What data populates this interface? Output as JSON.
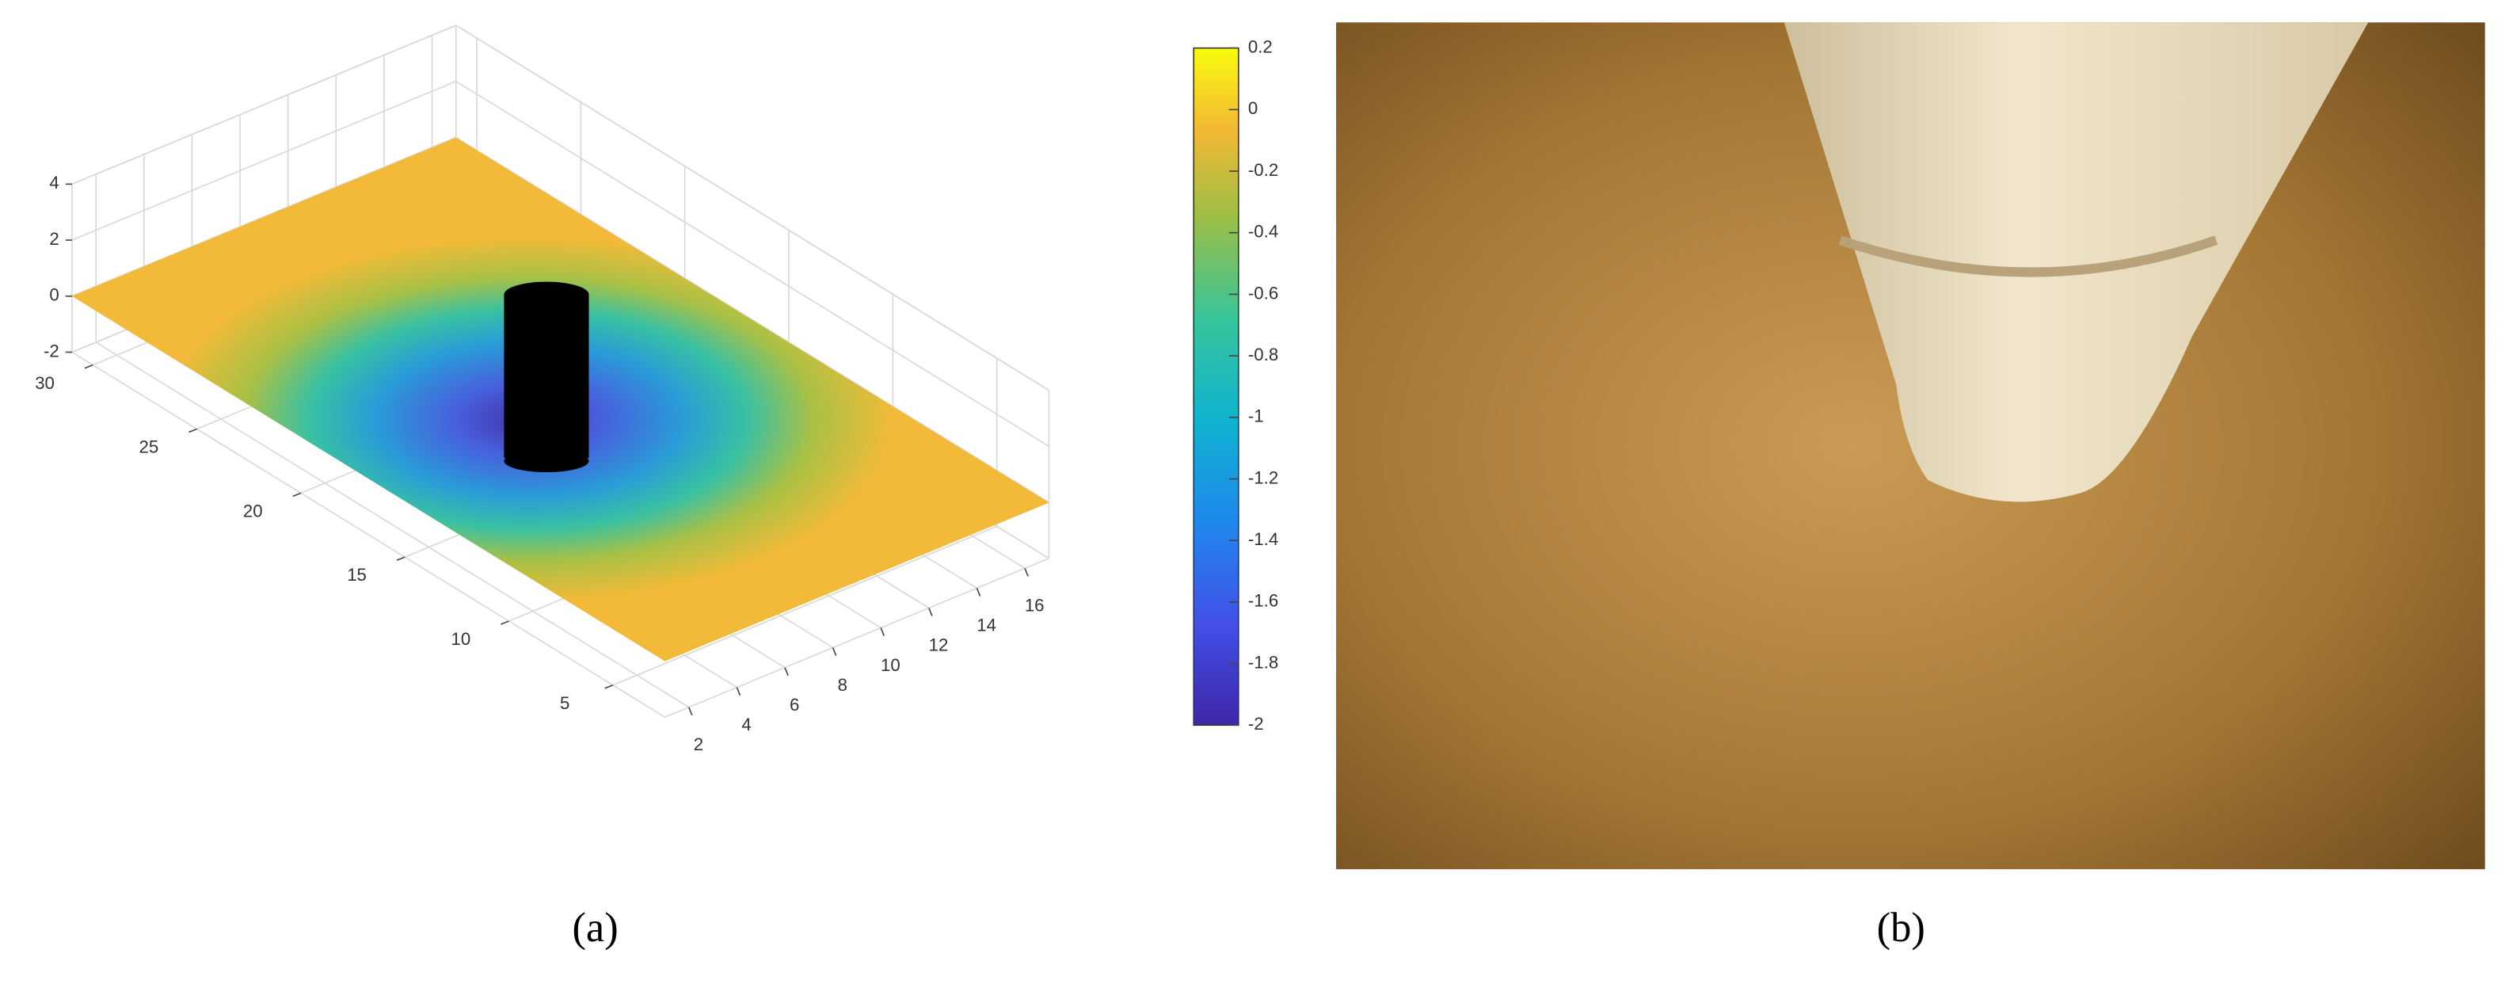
{
  "chart_data": {
    "type": "surface",
    "xlim": [
      1,
      17
    ],
    "xticks": [
      2,
      4,
      6,
      8,
      10,
      12,
      14,
      16
    ],
    "ylim": [
      2.5,
      31
    ],
    "yticks": [
      5,
      10,
      15,
      20,
      25,
      30
    ],
    "zlim": [
      -2,
      4
    ],
    "zticks": [
      -2,
      0,
      2,
      4
    ],
    "grid": true,
    "colorbar": {
      "clim": [
        -2,
        0.2
      ],
      "ticks": [
        -2,
        -1.8,
        -1.6,
        -1.4,
        -1.2,
        -1,
        -0.8,
        -0.6,
        -0.4,
        -0.2,
        0,
        0.2
      ]
    }
  },
  "figure": {
    "labels": [
      "(a)",
      "(b)"
    ]
  }
}
